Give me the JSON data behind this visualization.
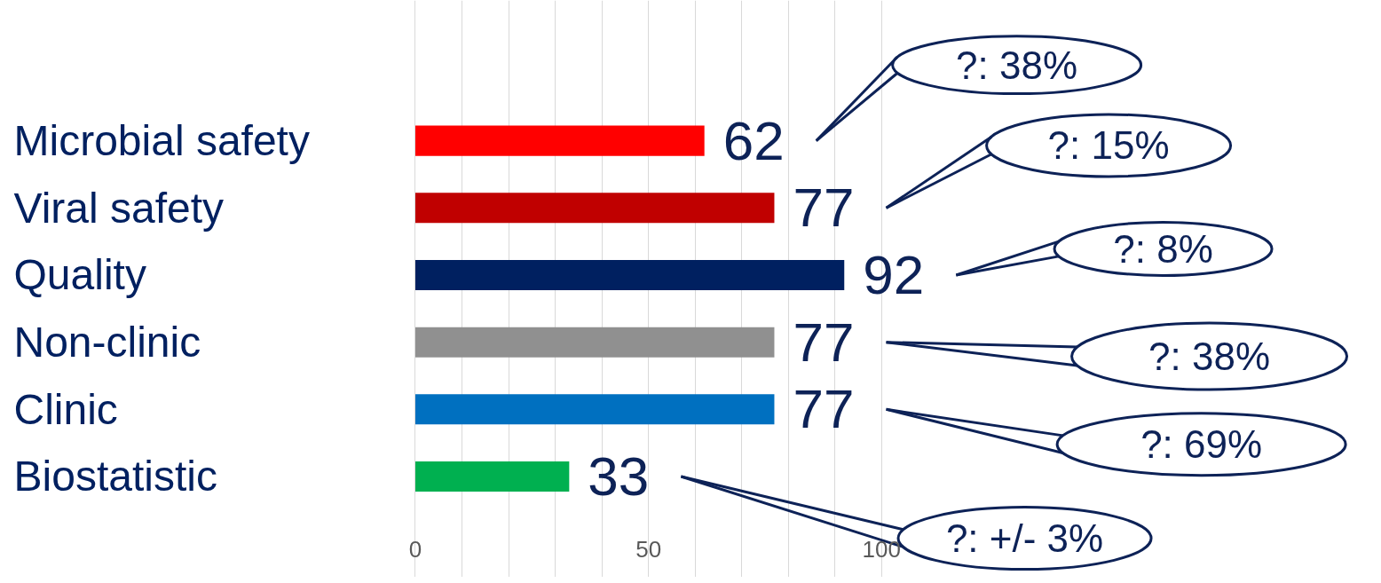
{
  "chart_data": {
    "type": "bar",
    "orientation": "horizontal",
    "categories": [
      "Microbial safety",
      "Viral safety",
      "Quality",
      "Non-clinic",
      "Clinic",
      "Biostatistic"
    ],
    "values": [
      62,
      77,
      92,
      77,
      77,
      33
    ],
    "colors": [
      "#ff0000",
      "#c00000",
      "#002060",
      "#909090",
      "#0070c0",
      "#00b050"
    ],
    "data_labels": true,
    "xlim": [
      -89,
      205.7
    ],
    "xticks": [
      0,
      {
        "value": 10,
        "label": null
      },
      {
        "value": 20,
        "label": null
      },
      {
        "value": 30,
        "label": null
      },
      {
        "value": 40,
        "label": null
      },
      50,
      {
        "value": 60,
        "label": null
      },
      {
        "value": 70,
        "label": null
      },
      {
        "value": 80,
        "label": null
      },
      {
        "value": 90,
        "label": null
      },
      100
    ],
    "grid": "x",
    "tick_labels": "x",
    "annotations": [
      "?: 38%",
      "?: 15%",
      "?: 8%",
      "?: 38%",
      "?: 69%",
      "?: +/- 3%"
    ]
  }
}
